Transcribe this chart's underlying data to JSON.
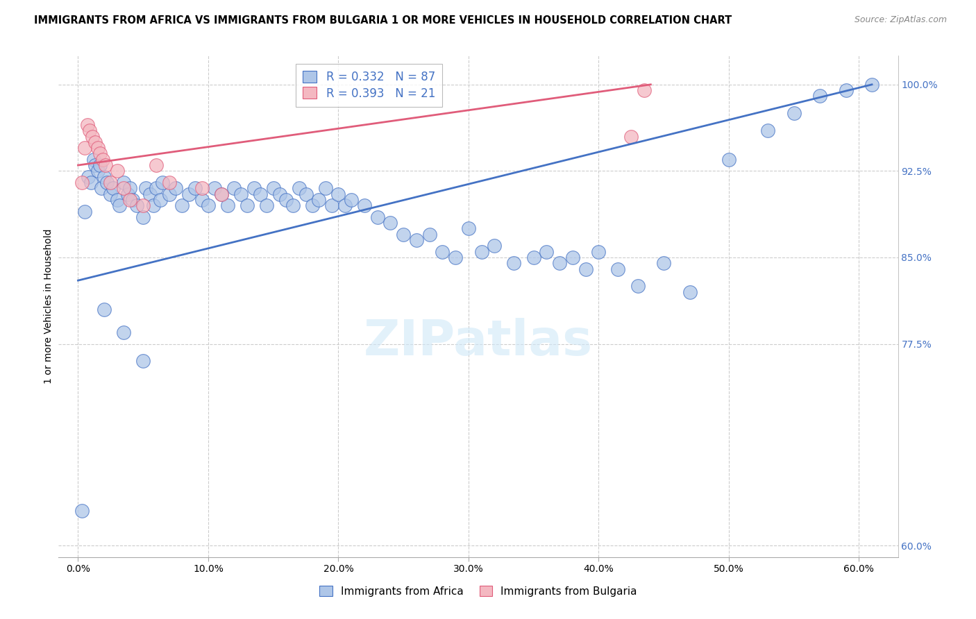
{
  "title": "IMMIGRANTS FROM AFRICA VS IMMIGRANTS FROM BULGARIA 1 OR MORE VEHICLES IN HOUSEHOLD CORRELATION CHART",
  "source": "Source: ZipAtlas.com",
  "ylabel": "1 or more Vehicles in Household",
  "xlim": [
    -1.5,
    63.0
  ],
  "ylim": [
    59.0,
    102.5
  ],
  "x_tick_vals": [
    0,
    10,
    20,
    30,
    40,
    50,
    60
  ],
  "y_tick_vals": [
    60.0,
    77.5,
    85.0,
    92.5,
    100.0
  ],
  "legend1_label": "R = 0.332   N = 87",
  "legend2_label": "R = 0.393   N = 21",
  "africa_color_face": "#aec6e8",
  "africa_color_edge": "#4472c4",
  "bulgaria_color_face": "#f4b8c1",
  "bulgaria_color_edge": "#e05c7a",
  "line_africa_color": "#4472c4",
  "line_bulgaria_color": "#e05c7a",
  "watermark_color": "#d0e8f8",
  "background_color": "#ffffff",
  "africa_x": [
    0.3,
    0.5,
    0.8,
    1.0,
    1.2,
    1.3,
    1.5,
    1.7,
    1.8,
    2.0,
    2.2,
    2.5,
    2.7,
    3.0,
    3.2,
    3.5,
    3.8,
    4.0,
    4.2,
    4.5,
    5.0,
    5.2,
    5.5,
    5.8,
    6.0,
    6.3,
    6.5,
    7.0,
    7.5,
    8.0,
    8.5,
    9.0,
    9.5,
    10.0,
    10.5,
    11.0,
    11.5,
    12.0,
    12.5,
    13.0,
    13.5,
    14.0,
    14.5,
    15.0,
    15.5,
    16.0,
    16.5,
    17.0,
    17.5,
    18.0,
    18.5,
    19.0,
    19.5,
    20.0,
    20.5,
    21.0,
    22.0,
    23.0,
    24.0,
    25.0,
    26.0,
    27.0,
    28.0,
    29.0,
    30.0,
    31.0,
    32.0,
    33.5,
    35.0,
    36.0,
    37.0,
    38.0,
    39.0,
    40.0,
    41.5,
    43.0,
    45.0,
    47.0,
    50.0,
    53.0,
    55.0,
    57.0,
    59.0,
    61.0,
    2.0,
    3.5,
    5.0
  ],
  "africa_y": [
    63.0,
    89.0,
    92.0,
    91.5,
    93.5,
    93.0,
    92.5,
    93.0,
    91.0,
    92.0,
    91.5,
    90.5,
    91.0,
    90.0,
    89.5,
    91.5,
    90.5,
    91.0,
    90.0,
    89.5,
    88.5,
    91.0,
    90.5,
    89.5,
    91.0,
    90.0,
    91.5,
    90.5,
    91.0,
    89.5,
    90.5,
    91.0,
    90.0,
    89.5,
    91.0,
    90.5,
    89.5,
    91.0,
    90.5,
    89.5,
    91.0,
    90.5,
    89.5,
    91.0,
    90.5,
    90.0,
    89.5,
    91.0,
    90.5,
    89.5,
    90.0,
    91.0,
    89.5,
    90.5,
    89.5,
    90.0,
    89.5,
    88.5,
    88.0,
    87.0,
    86.5,
    87.0,
    85.5,
    85.0,
    87.5,
    85.5,
    86.0,
    84.5,
    85.0,
    85.5,
    84.5,
    85.0,
    84.0,
    85.5,
    84.0,
    82.5,
    84.5,
    82.0,
    93.5,
    96.0,
    97.5,
    99.0,
    99.5,
    100.0,
    80.5,
    78.5,
    76.0
  ],
  "bulgaria_x": [
    0.3,
    0.5,
    0.7,
    0.9,
    1.1,
    1.3,
    1.5,
    1.7,
    1.9,
    2.1,
    2.5,
    3.0,
    3.5,
    4.0,
    5.0,
    6.0,
    7.0,
    9.5,
    11.0,
    42.5,
    43.5
  ],
  "bulgaria_y": [
    91.5,
    94.5,
    96.5,
    96.0,
    95.5,
    95.0,
    94.5,
    94.0,
    93.5,
    93.0,
    91.5,
    92.5,
    91.0,
    90.0,
    89.5,
    93.0,
    91.5,
    91.0,
    90.5,
    95.5,
    99.5
  ],
  "line_africa_x0": 0.0,
  "line_africa_x1": 61.0,
  "line_africa_y0": 83.0,
  "line_africa_y1": 100.0,
  "line_bulgaria_x0": 0.0,
  "line_bulgaria_x1": 44.0,
  "line_bulgaria_y0": 93.0,
  "line_bulgaria_y1": 100.0
}
